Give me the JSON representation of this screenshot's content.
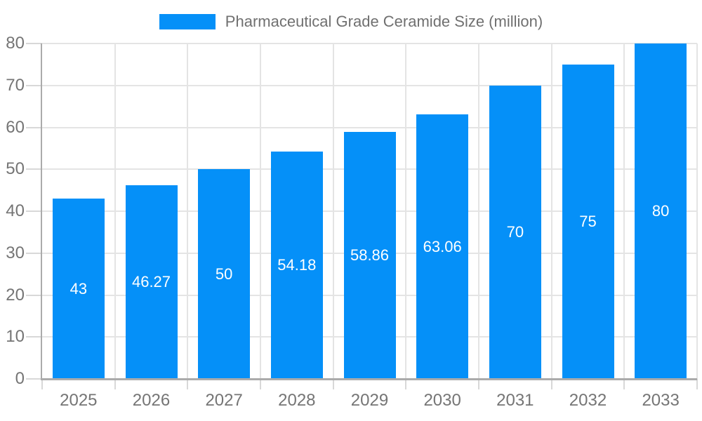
{
  "chart_data": {
    "type": "bar",
    "title": "Pharmaceutical Grade Ceramide Size (million)",
    "categories": [
      "2025",
      "2026",
      "2027",
      "2028",
      "2029",
      "2030",
      "2031",
      "2032",
      "2033"
    ],
    "values": [
      43,
      46.27,
      50,
      54.18,
      58.86,
      63.06,
      70,
      75,
      80
    ],
    "value_labels": [
      "43",
      "46.27",
      "50",
      "54.18",
      "58.86",
      "63.06",
      "70",
      "75",
      "80"
    ],
    "xlabel": "",
    "ylabel": "",
    "ylim": [
      0,
      80
    ],
    "y_ticks": [
      0,
      10,
      20,
      30,
      40,
      50,
      60,
      70,
      80
    ],
    "grid": "on",
    "legend_position": "top-center",
    "colors": {
      "bar": "#0590f8",
      "grid": "#e4e4e4",
      "axis": "#ababab",
      "tick": "#d8d8d8",
      "axis_label": "#757575",
      "legend_text": "#707070",
      "bar_label": "#ffffff",
      "background": "#ffffff"
    }
  }
}
